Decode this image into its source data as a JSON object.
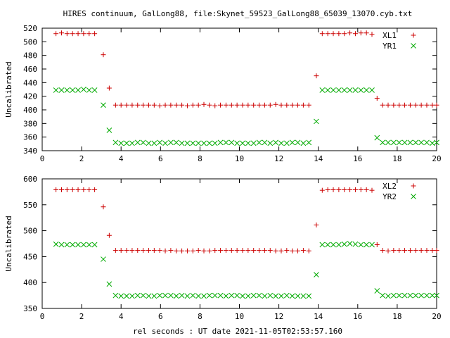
{
  "title": "HIRES continuum, GalLong88, file:Skynet_59523_GalLong88_65039_13070.cyb.txt",
  "xlabel": "rel seconds : UT date 2021-11-05T02:53:57.160",
  "colors": {
    "red": "#cc0000",
    "green": "#00aa00"
  },
  "chart_data": [
    {
      "type": "scatter",
      "ylabel": "Uncalibrated",
      "xlim": [
        0,
        20
      ],
      "ylim": [
        340,
        520
      ],
      "xticks": [
        0,
        2,
        4,
        6,
        8,
        10,
        12,
        14,
        16,
        18,
        20
      ],
      "yticks": [
        340,
        360,
        380,
        400,
        420,
        440,
        460,
        480,
        500,
        520
      ],
      "legend": "top-right",
      "grid": false,
      "x": [
        0.7,
        0.98,
        1.26,
        1.54,
        1.82,
        2.1,
        2.38,
        2.66,
        3.1,
        3.4,
        3.72,
        4.0,
        4.28,
        4.56,
        4.84,
        5.12,
        5.4,
        5.68,
        5.96,
        6.24,
        6.52,
        6.8,
        7.08,
        7.36,
        7.64,
        7.92,
        8.2,
        8.48,
        8.76,
        9.04,
        9.32,
        9.6,
        9.88,
        10.16,
        10.44,
        10.72,
        11.0,
        11.28,
        11.56,
        11.84,
        12.12,
        12.4,
        12.68,
        12.96,
        13.24,
        13.52,
        13.9,
        14.2,
        14.48,
        14.76,
        15.04,
        15.32,
        15.6,
        15.88,
        16.16,
        16.44,
        16.72,
        16.98,
        17.26,
        17.54,
        17.82,
        18.1,
        18.38,
        18.66,
        18.94,
        19.22,
        19.5,
        19.78,
        20.0
      ],
      "series": [
        {
          "name": "XL1",
          "color": "#cc0000",
          "marker": "plus",
          "values": [
            512,
            513,
            512,
            512,
            512,
            512,
            512,
            512,
            481,
            432,
            407,
            407,
            407,
            407,
            407,
            407,
            407,
            407,
            406,
            407,
            407,
            407,
            407,
            406,
            407,
            407,
            408,
            407,
            406,
            407,
            407,
            407,
            407,
            407,
            407,
            407,
            407,
            407,
            407,
            408,
            407,
            407,
            407,
            407,
            407,
            407,
            450,
            512,
            512,
            512,
            512,
            512,
            513,
            512,
            513,
            513,
            511,
            417,
            407,
            407,
            407,
            407,
            407,
            407,
            407,
            407,
            407,
            407,
            407
          ]
        },
        {
          "name": "YR1",
          "color": "#00aa00",
          "marker": "cross",
          "values": [
            429,
            429,
            429,
            429,
            429,
            430,
            429,
            429,
            407,
            370,
            352,
            351,
            351,
            351,
            352,
            352,
            351,
            351,
            352,
            351,
            352,
            352,
            351,
            351,
            351,
            351,
            351,
            351,
            351,
            352,
            352,
            352,
            351,
            351,
            351,
            351,
            352,
            352,
            351,
            352,
            351,
            351,
            352,
            352,
            351,
            352,
            383,
            429,
            429,
            429,
            429,
            429,
            429,
            429,
            429,
            429,
            429,
            359,
            352,
            352,
            352,
            352,
            352,
            352,
            352,
            352,
            352,
            351,
            352
          ]
        }
      ]
    },
    {
      "type": "scatter",
      "ylabel": "Uncalibrated",
      "xlim": [
        0,
        20
      ],
      "ylim": [
        350,
        600
      ],
      "xticks": [
        0,
        2,
        4,
        6,
        8,
        10,
        12,
        14,
        16,
        18,
        20
      ],
      "yticks": [
        350,
        400,
        450,
        500,
        550,
        600
      ],
      "legend": "top-right",
      "grid": false,
      "x": [
        0.7,
        0.98,
        1.26,
        1.54,
        1.82,
        2.1,
        2.38,
        2.66,
        3.1,
        3.4,
        3.72,
        4.0,
        4.28,
        4.56,
        4.84,
        5.12,
        5.4,
        5.68,
        5.96,
        6.24,
        6.52,
        6.8,
        7.08,
        7.36,
        7.64,
        7.92,
        8.2,
        8.48,
        8.76,
        9.04,
        9.32,
        9.6,
        9.88,
        10.16,
        10.44,
        10.72,
        11.0,
        11.28,
        11.56,
        11.84,
        12.12,
        12.4,
        12.68,
        12.96,
        13.24,
        13.52,
        13.9,
        14.2,
        14.48,
        14.76,
        15.04,
        15.32,
        15.6,
        15.88,
        16.16,
        16.44,
        16.72,
        16.98,
        17.26,
        17.54,
        17.82,
        18.1,
        18.38,
        18.66,
        18.94,
        19.22,
        19.5,
        19.78,
        20.0
      ],
      "series": [
        {
          "name": "XL2",
          "color": "#cc0000",
          "marker": "plus",
          "values": [
            579,
            579,
            579,
            579,
            579,
            579,
            579,
            579,
            546,
            491,
            462,
            462,
            462,
            462,
            462,
            462,
            462,
            462,
            462,
            461,
            462,
            461,
            461,
            461,
            461,
            462,
            461,
            461,
            462,
            462,
            462,
            462,
            462,
            462,
            462,
            462,
            462,
            462,
            462,
            461,
            461,
            462,
            461,
            461,
            462,
            461,
            511,
            578,
            579,
            579,
            579,
            579,
            579,
            579,
            579,
            579,
            578,
            473,
            462,
            461,
            462,
            462,
            462,
            462,
            462,
            462,
            462,
            462,
            462
          ]
        },
        {
          "name": "YR2",
          "color": "#00aa00",
          "marker": "cross",
          "values": [
            474,
            473,
            473,
            473,
            473,
            473,
            473,
            473,
            445,
            397,
            375,
            374,
            374,
            374,
            375,
            375,
            374,
            374,
            375,
            375,
            375,
            374,
            375,
            374,
            375,
            374,
            374,
            375,
            375,
            375,
            374,
            375,
            375,
            374,
            374,
            375,
            375,
            374,
            375,
            374,
            374,
            375,
            374,
            374,
            374,
            374,
            415,
            473,
            473,
            473,
            473,
            474,
            475,
            474,
            473,
            473,
            473,
            384,
            375,
            374,
            375,
            375,
            375,
            375,
            375,
            375,
            375,
            375,
            375
          ]
        }
      ]
    }
  ]
}
